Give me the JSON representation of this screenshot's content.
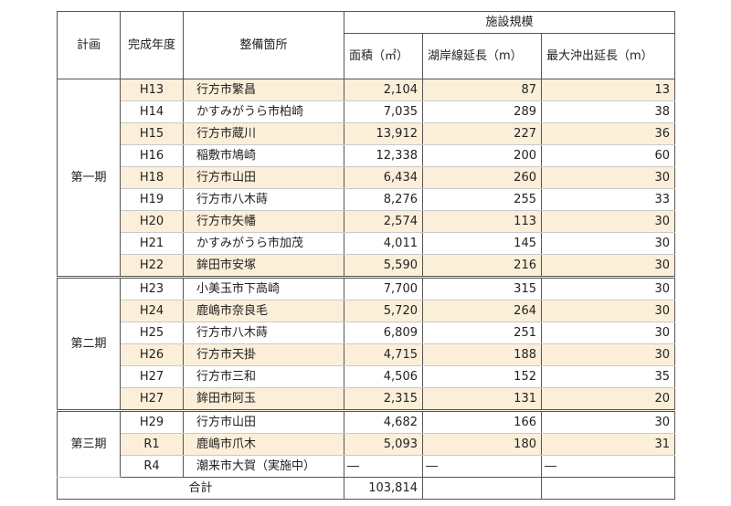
{
  "headers": {
    "plan": "計画",
    "year": "完成年度",
    "location": "整備箇所",
    "scale_group": "施設規模",
    "area": "面積（㎡）",
    "shoreline": "湖岸線延長（m）",
    "offshore": "最大沖出延長（m）"
  },
  "periods": [
    {
      "label": "第一期",
      "rows": [
        {
          "year": "H13",
          "location": "行方市繁昌",
          "area": "2,104",
          "shoreline": "87",
          "offshore": "13",
          "highlight": true
        },
        {
          "year": "H14",
          "location": "かすみがうら市柏崎",
          "area": "7,035",
          "shoreline": "289",
          "offshore": "38",
          "highlight": false
        },
        {
          "year": "H15",
          "location": "行方市蔵川",
          "area": "13,912",
          "shoreline": "227",
          "offshore": "36",
          "highlight": true
        },
        {
          "year": "H16",
          "location": "稲敷市鳩崎",
          "area": "12,338",
          "shoreline": "200",
          "offshore": "60",
          "highlight": false
        },
        {
          "year": "H18",
          "location": "行方市山田",
          "area": "6,434",
          "shoreline": "260",
          "offshore": "30",
          "highlight": true
        },
        {
          "year": "H19",
          "location": "行方市八木蒔",
          "area": "8,276",
          "shoreline": "255",
          "offshore": "33",
          "highlight": false
        },
        {
          "year": "H20",
          "location": "行方市矢幡",
          "area": "2,574",
          "shoreline": "113",
          "offshore": "30",
          "highlight": true
        },
        {
          "year": "H21",
          "location": "かすみがうら市加茂",
          "area": "4,011",
          "shoreline": "145",
          "offshore": "30",
          "highlight": false
        },
        {
          "year": "H22",
          "location": "鉾田市安塚",
          "area": "5,590",
          "shoreline": "216",
          "offshore": "30",
          "highlight": true
        }
      ]
    },
    {
      "label": "第二期",
      "rows": [
        {
          "year": "H23",
          "location": "小美玉市下高崎",
          "area": "7,700",
          "shoreline": "315",
          "offshore": "30",
          "highlight": false
        },
        {
          "year": "H24",
          "location": "鹿嶋市奈良毛",
          "area": "5,720",
          "shoreline": "264",
          "offshore": "30",
          "highlight": true
        },
        {
          "year": "H25",
          "location": "行方市八木蒔",
          "area": "6,809",
          "shoreline": "251",
          "offshore": "30",
          "highlight": false
        },
        {
          "year": "H26",
          "location": "行方市天掛",
          "area": "4,715",
          "shoreline": "188",
          "offshore": "30",
          "highlight": true
        },
        {
          "year": "H27",
          "location": "行方市三和",
          "area": "4,506",
          "shoreline": "152",
          "offshore": "35",
          "highlight": false
        },
        {
          "year": "H27",
          "location": "鉾田市阿玉",
          "area": "2,315",
          "shoreline": "131",
          "offshore": "20",
          "highlight": true
        }
      ]
    },
    {
      "label": "第三期",
      "rows": [
        {
          "year": "H29",
          "location": "行方市山田",
          "area": "4,682",
          "shoreline": "166",
          "offshore": "30",
          "highlight": false
        },
        {
          "year": "R1",
          "location": "鹿嶋市爪木",
          "area": "5,093",
          "shoreline": "180",
          "offshore": "31",
          "highlight": true
        },
        {
          "year": "R4",
          "location": "潮来市大賀（実施中）",
          "area": "―",
          "shoreline": "―",
          "offshore": "―",
          "highlight": false,
          "pending": true
        }
      ]
    }
  ],
  "total": {
    "label": "合計",
    "area": "103,814"
  },
  "colors": {
    "highlight": "#fcefd9",
    "border": "#555555"
  }
}
